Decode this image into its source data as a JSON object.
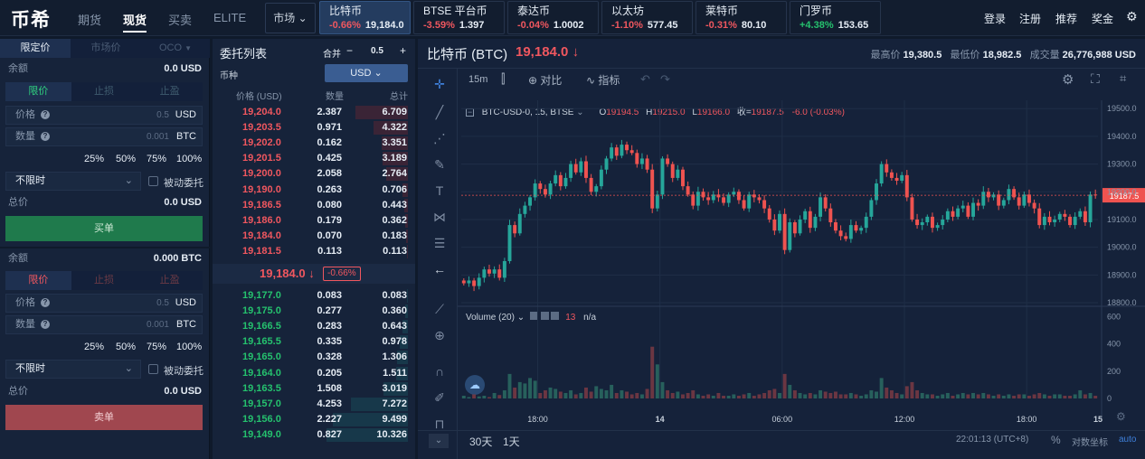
{
  "header": {
    "logo": "币希",
    "nav": [
      "期货",
      "现货",
      "买卖",
      "ELITE"
    ],
    "nav_active": 1,
    "market_btn": "市场",
    "tickers": [
      {
        "name": "比特币",
        "change": "-0.66%",
        "price": "19,184.0",
        "dir": "down"
      },
      {
        "name": "BTSE 平台币",
        "change": "-3.59%",
        "price": "1.397",
        "dir": "down"
      },
      {
        "name": "泰达币",
        "change": "-0.04%",
        "price": "1.0002",
        "dir": "down"
      },
      {
        "name": "以太坊",
        "change": "-1.10%",
        "price": "577.45",
        "dir": "down"
      },
      {
        "name": "莱特币",
        "change": "-0.31%",
        "price": "80.10",
        "dir": "down"
      },
      {
        "name": "门罗币",
        "change": "+4.38%",
        "price": "153.65",
        "dir": "up"
      }
    ],
    "right_nav": [
      "登录",
      "注册",
      "推荐",
      "奖金"
    ]
  },
  "order_form": {
    "type_tabs": [
      "限定价",
      "市场价",
      "OCO"
    ],
    "buy": {
      "balance_label": "余额",
      "balance": "0.0 USD",
      "tabs": [
        "限价",
        "止损",
        "止盈"
      ],
      "price_label": "价格",
      "price_placeholder": "0.5",
      "price_unit": "USD",
      "qty_label": "数量",
      "qty_placeholder": "0.001",
      "qty_unit": "BTC",
      "percents": [
        "25%",
        "50%",
        "75%",
        "100%"
      ],
      "tif": "不限时",
      "passive": "被动委托",
      "total_label": "总价",
      "total": "0.0 USD",
      "button": "买单"
    },
    "sell": {
      "balance_label": "余额",
      "balance": "0.000 BTC",
      "tabs": [
        "限价",
        "止损",
        "止盈"
      ],
      "price_label": "价格",
      "price_placeholder": "0.5",
      "price_unit": "USD",
      "qty_label": "数量",
      "qty_placeholder": "0.001",
      "qty_unit": "BTC",
      "percents": [
        "25%",
        "50%",
        "75%",
        "100%"
      ],
      "tif": "不限时",
      "passive": "被动委托",
      "total_label": "总价",
      "total": "0.0 USD",
      "button": "卖单"
    }
  },
  "orderbook": {
    "title": "委托列表",
    "merge_label": "合并",
    "merge_minus": "−",
    "merge_value": "0.5",
    "merge_plus": "+",
    "currency_label": "币种",
    "currency": "USD",
    "headers": [
      "价格 (USD)",
      "数量",
      "总计"
    ],
    "asks": [
      {
        "price": "19,204.0",
        "qty": "2.387",
        "total": "6.709",
        "depth": 0.58
      },
      {
        "price": "19,203.5",
        "qty": "0.971",
        "total": "4.322",
        "depth": 0.38
      },
      {
        "price": "19,202.0",
        "qty": "0.162",
        "total": "3.351",
        "depth": 0.29
      },
      {
        "price": "19,201.5",
        "qty": "0.425",
        "total": "3.189",
        "depth": 0.28
      },
      {
        "price": "19,200.0",
        "qty": "2.058",
        "total": "2.764",
        "depth": 0.24
      },
      {
        "price": "19,190.0",
        "qty": "0.263",
        "total": "0.706",
        "depth": 0.06
      },
      {
        "price": "19,186.5",
        "qty": "0.080",
        "total": "0.443",
        "depth": 0.04
      },
      {
        "price": "19,186.0",
        "qty": "0.179",
        "total": "0.362",
        "depth": 0.03
      },
      {
        "price": "19,184.0",
        "qty": "0.070",
        "total": "0.183",
        "depth": 0.02
      },
      {
        "price": "19,181.5",
        "qty": "0.113",
        "total": "0.113",
        "depth": 0.01
      }
    ],
    "last_price": "19,184.0",
    "last_change": "-0.66%",
    "bids": [
      {
        "price": "19,177.0",
        "qty": "0.083",
        "total": "0.083",
        "depth": 0.01
      },
      {
        "price": "19,175.0",
        "qty": "0.277",
        "total": "0.360",
        "depth": 0.03
      },
      {
        "price": "19,166.5",
        "qty": "0.283",
        "total": "0.643",
        "depth": 0.06
      },
      {
        "price": "19,165.5",
        "qty": "0.335",
        "total": "0.978",
        "depth": 0.09
      },
      {
        "price": "19,165.0",
        "qty": "0.328",
        "total": "1.306",
        "depth": 0.12
      },
      {
        "price": "19,164.0",
        "qty": "0.205",
        "total": "1.511",
        "depth": 0.13
      },
      {
        "price": "19,163.5",
        "qty": "1.508",
        "total": "3.019",
        "depth": 0.27
      },
      {
        "price": "19,157.0",
        "qty": "4.253",
        "total": "7.272",
        "depth": 0.63
      },
      {
        "price": "19,156.0",
        "qty": "2.227",
        "total": "9.499",
        "depth": 0.83
      },
      {
        "price": "19,149.0",
        "qty": "0.827",
        "total": "10.326",
        "depth": 0.9
      }
    ]
  },
  "chart": {
    "symbol": "比特币 (BTC)",
    "price": "19,184.0",
    "high_label": "最高价",
    "high": "19,380.5",
    "low_label": "最低价",
    "low": "18,982.5",
    "vol_label": "成交量",
    "vol": "26,776,988 USD",
    "interval": "15m",
    "compare": "对比",
    "indicators": "指标",
    "legend_symbol": "BTC-USD-0, 15, BTSE",
    "ohlc": {
      "o": "19194.5",
      "h": "19215.0",
      "l": "19166.0",
      "c": "19187.5",
      "chg": "-6.0 (-0.03%)"
    },
    "ohlc_labels": {
      "o": "O",
      "h": "H",
      "l": "L",
      "c": "收="
    },
    "last_tag": "19187.5",
    "vol_legend": "Volume (20)",
    "vol_value": "13",
    "vol_na": "n/a",
    "ranges": [
      "30天",
      "1天"
    ],
    "clock": "22:01:13 (UTC+8)",
    "pct_btn": "%",
    "log_btn": "对数坐标",
    "auto_btn": "auto",
    "colors": {
      "up": "#25c26e",
      "down": "#f0575f",
      "candle_up": "#26a69a",
      "candle_down": "#ef5350"
    }
  },
  "chart_data": {
    "type": "candlestick",
    "y_ticks": [
      18800,
      18900,
      19000,
      19100,
      19200,
      19300,
      19400,
      19500
    ],
    "y_tick_labels": [
      "18800.0",
      "18900.0",
      "19000.0",
      "19100.0",
      "19200.0",
      "19300.0",
      "19400.0",
      "19500.0"
    ],
    "ylim": [
      18800,
      19530
    ],
    "vol_ticks": [
      0,
      200,
      400,
      600
    ],
    "vol_ylim": [
      0,
      650
    ],
    "x_ticks": [
      {
        "i": 15,
        "label": "18:00"
      },
      {
        "i": 39,
        "label": "14"
      },
      {
        "i": 63,
        "label": "06:00"
      },
      {
        "i": 87,
        "label": "12:00"
      },
      {
        "i": 111,
        "label": "18:00"
      },
      {
        "i": 135,
        "label": "15"
      }
    ],
    "last_price": 19187.5,
    "closes": [
      18870,
      18880,
      18860,
      18890,
      18920,
      18905,
      18920,
      18890,
      18950,
      19080,
      19050,
      19120,
      19150,
      19180,
      19230,
      19210,
      19190,
      19230,
      19260,
      19220,
      19250,
      19300,
      19270,
      19310,
      19250,
      19200,
      19220,
      19280,
      19320,
      19360,
      19330,
      19370,
      19350,
      19340,
      19300,
      19320,
      19280,
      19140,
      19190,
      19320,
      19300,
      19250,
      19280,
      19220,
      19190,
      19150,
      19200,
      19180,
      19170,
      19190,
      19180,
      19160,
      19190,
      19200,
      19170,
      19140,
      19190,
      19180,
      19170,
      19140,
      19100,
      19060,
      19120,
      18990,
      19090,
      19050,
      19100,
      19130,
      19070,
      19110,
      19180,
      19140,
      19090,
      19060,
      19040,
      19030,
      19080,
      19060,
      19070,
      19110,
      19170,
      19230,
      19300,
      19270,
      19250,
      19240,
      19260,
      19180,
      19100,
      19080,
      19090,
      19110,
      19070,
      19080,
      19100,
      19130,
      19110,
      19140,
      19150,
      19110,
      19160,
      19150,
      19200,
      19180,
      19190,
      19150,
      19170,
      19210,
      19180,
      19150,
      19190,
      19160,
      19140,
      19080,
      19110,
      19090,
      19100,
      19120,
      19110,
      19080,
      19110,
      19130,
      19090,
      19190,
      19187
    ],
    "volumes": [
      20,
      10,
      30,
      15,
      20,
      10,
      40,
      25,
      60,
      180,
      80,
      120,
      110,
      150,
      130,
      40,
      60,
      80,
      70,
      50,
      40,
      60,
      30,
      40,
      80,
      50,
      90,
      70,
      60,
      100,
      40,
      60,
      50,
      30,
      40,
      30,
      70,
      380,
      250,
      120,
      60,
      40,
      50,
      30,
      40,
      60,
      30,
      20,
      30,
      20,
      40,
      20,
      20,
      30,
      20,
      30,
      40,
      20,
      30,
      40,
      60,
      70,
      40,
      180,
      100,
      60,
      40,
      30,
      40,
      30,
      60,
      50,
      40,
      50,
      30,
      30,
      40,
      30,
      20,
      30,
      60,
      50,
      150,
      80,
      60,
      40,
      30,
      90,
      120,
      60,
      40,
      30,
      30,
      20,
      30,
      40,
      20,
      30,
      40,
      30,
      40,
      30,
      40,
      30,
      20,
      30,
      20,
      30,
      20,
      30,
      30,
      20,
      30,
      40,
      30,
      20,
      30,
      30,
      20,
      20,
      30,
      60,
      30,
      40,
      20
    ]
  }
}
